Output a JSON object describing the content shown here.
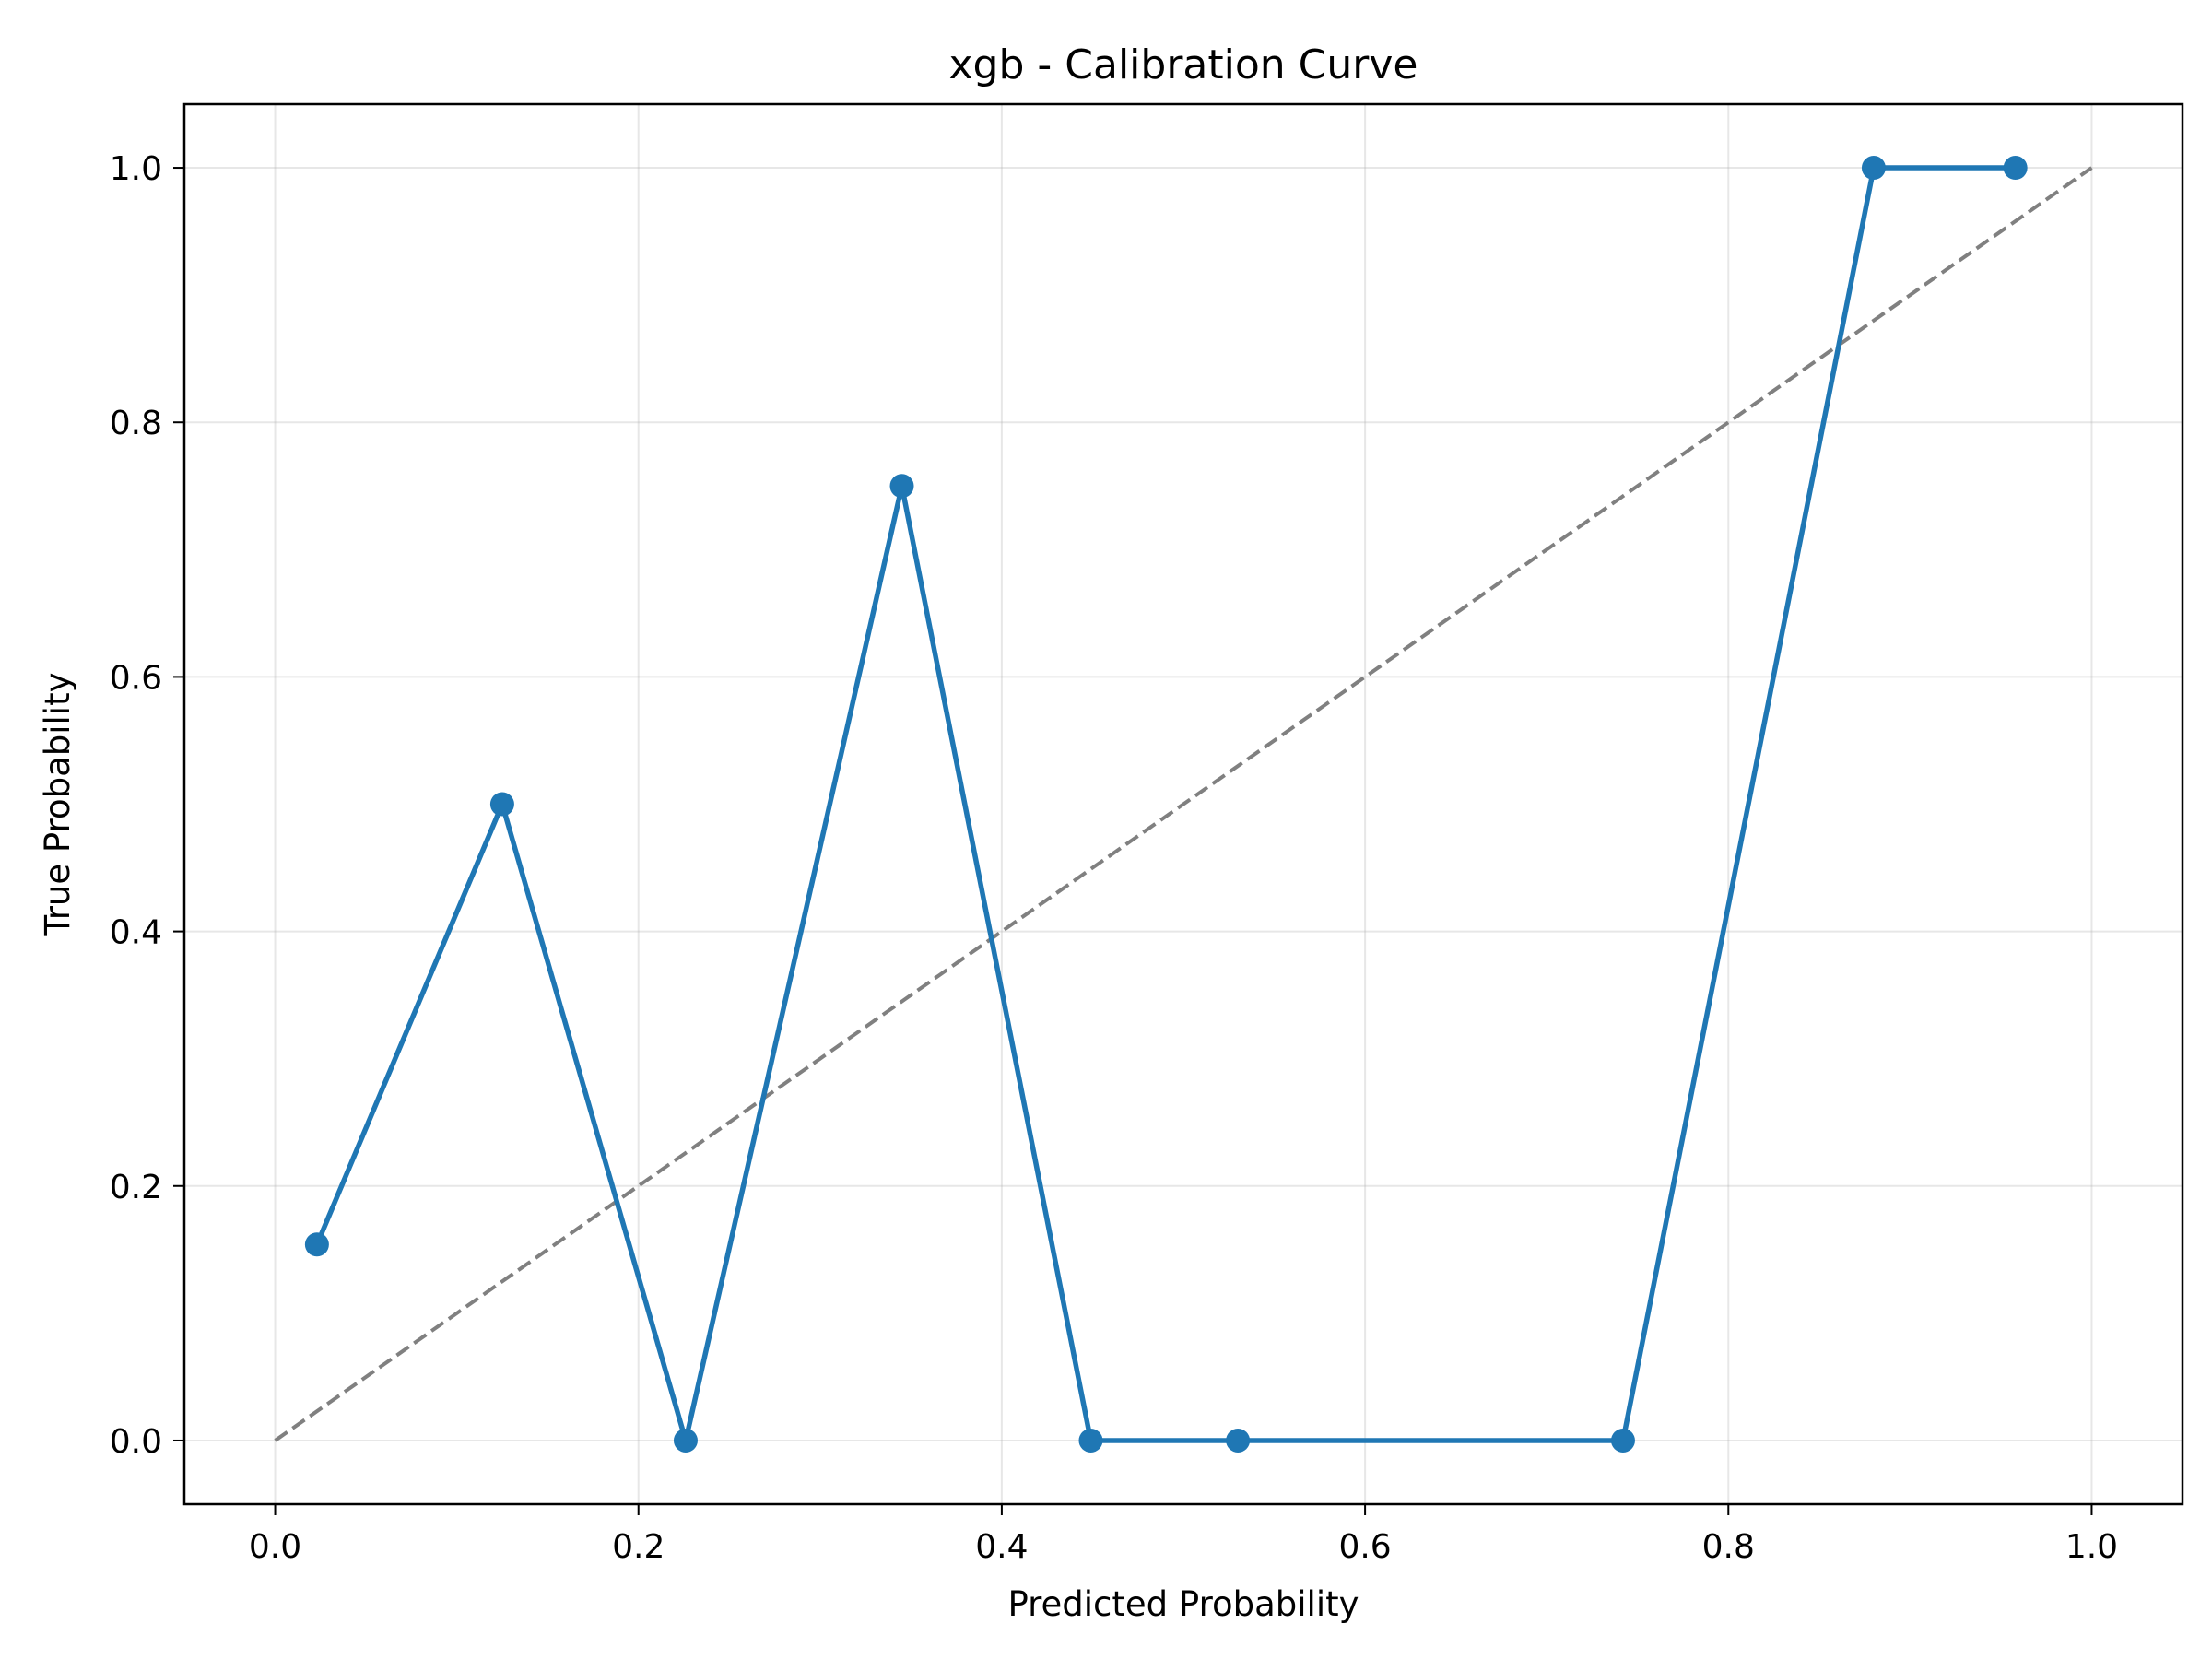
{
  "chart_data": {
    "type": "line",
    "title": "xgb - Calibration Curve",
    "xlabel": "Predicted Probability",
    "ylabel": "True Probability",
    "xlim": [
      -0.05,
      1.05
    ],
    "ylim": [
      -0.05,
      1.05
    ],
    "grid": true,
    "x_ticks": [
      "0.0",
      "0.2",
      "0.4",
      "0.6",
      "0.8",
      "1.0"
    ],
    "y_ticks": [
      "0.0",
      "0.2",
      "0.4",
      "0.6",
      "0.8",
      "1.0"
    ],
    "x_tick_values": [
      0.0,
      0.2,
      0.4,
      0.6,
      0.8,
      1.0
    ],
    "y_tick_values": [
      0.0,
      0.2,
      0.4,
      0.6,
      0.8,
      1.0
    ],
    "series": [
      {
        "color": "#1f77b4",
        "style": "solid",
        "marker": "circle",
        "x": [
          0.023,
          0.125,
          0.226,
          0.345,
          0.449,
          0.53,
          0.742,
          0.88,
          0.958
        ],
        "y": [
          0.154,
          0.5,
          0.0,
          0.75,
          0.0,
          0.0,
          0.0,
          1.0,
          1.0
        ]
      },
      {
        "color": "#808080",
        "style": "dashed",
        "marker": "none",
        "x": [
          0.0,
          1.0
        ],
        "y": [
          0.0,
          1.0
        ]
      }
    ]
  }
}
